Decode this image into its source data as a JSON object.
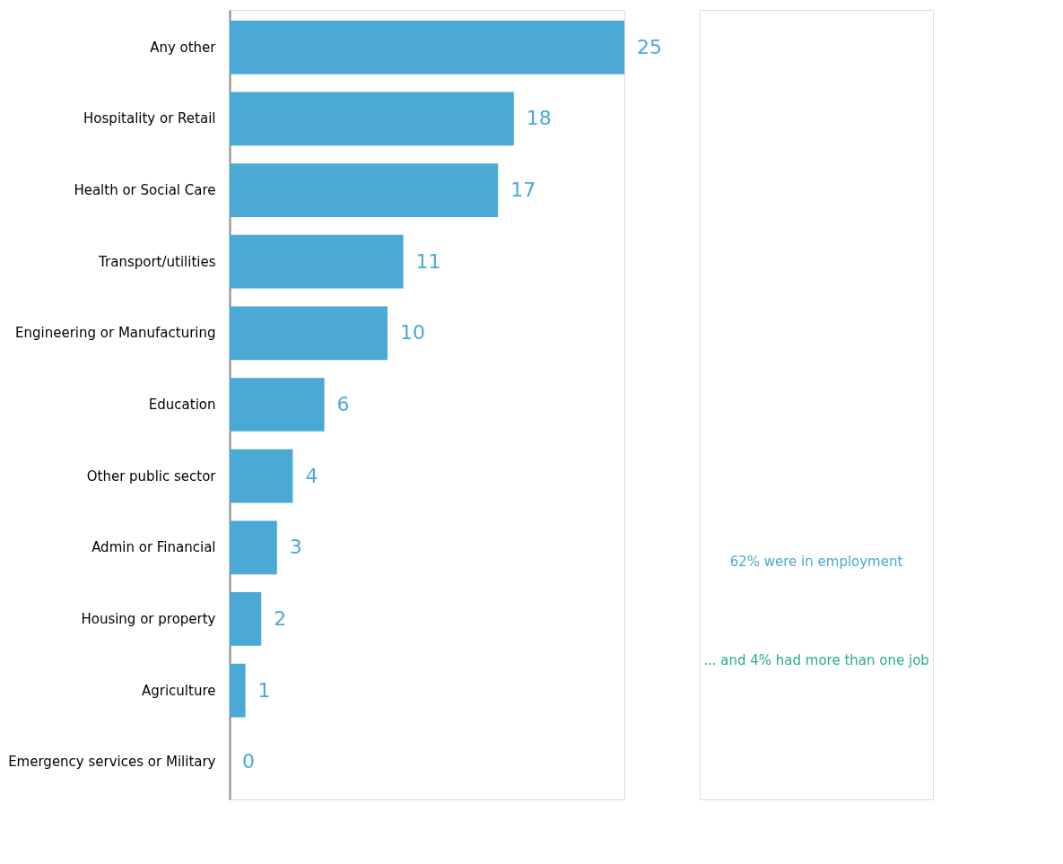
{
  "chart_data": {
    "type": "bar",
    "orientation": "horizontal",
    "data_labels": true,
    "categories": [
      "Any other",
      "Hospitality or Retail",
      "Health or Social Care",
      "Transport/utilities",
      "Engineering or Manufacturing",
      "Education",
      "Other public sector",
      "Admin or Financial",
      "Housing or property",
      "Agriculture",
      "Emergency services or Military"
    ],
    "series": [
      {
        "color": "#4ba9d5",
        "values": [
          25,
          18,
          17,
          11,
          10,
          6,
          4,
          3,
          2,
          1,
          0
        ]
      }
    ],
    "annotations": [
      "62% were in employment",
      "... and 4% had more than one job"
    ]
  }
}
